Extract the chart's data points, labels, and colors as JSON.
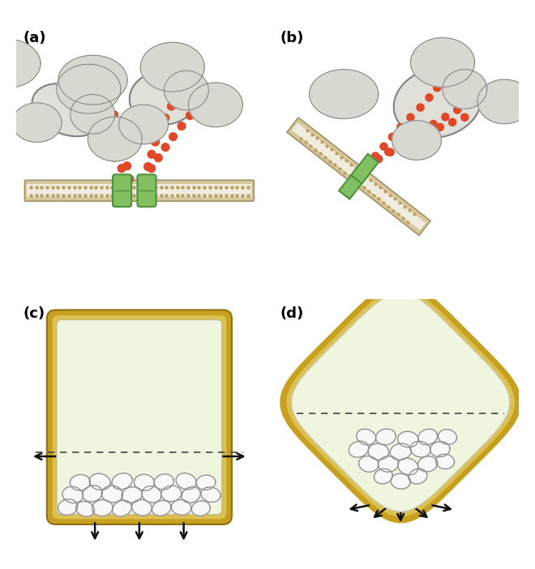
{
  "bg_color": "#ffffff",
  "label_color": "#000000",
  "cell_fill": "#f0f5e0",
  "cell_wall_color": "#c8a020",
  "cell_wall_inner": "#e8c840",
  "cell_inner_edge": "#b8b890",
  "amyloplast_fill": "#f8f8f8",
  "amyloplast_edge": "#909090",
  "mito_fill": "#e0e0d8",
  "mito_edge": "#808080",
  "er_color": "#e04828",
  "membrane_outer": "#d8c8a0",
  "membrane_inner": "#f0ece0",
  "membrane_dot": "#b8a060",
  "green_color": "#80c060",
  "green_edge": "#509040",
  "arrow_color": "#111111",
  "dashed_color": "#444444",
  "labels": [
    "(a)",
    "(b)",
    "(c)",
    "(d)"
  ],
  "label_fontsize": 13,
  "label_fontweight": "bold"
}
